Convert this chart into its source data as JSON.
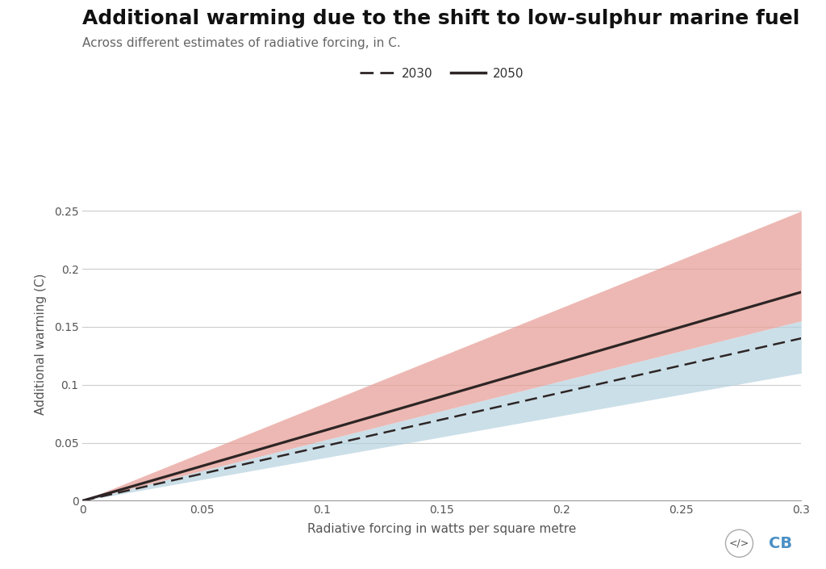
{
  "title": "Additional warming due to the shift to low-sulphur marine fuel",
  "subtitle": "Across different estimates of radiative forcing, in C.",
  "xlabel": "Radiative forcing in watts per square metre",
  "ylabel": "Additional warming (C)",
  "x_max": 0.3,
  "y_max": 0.27,
  "y_ticks": [
    0,
    0.05,
    0.1,
    0.15,
    0.2,
    0.25
  ],
  "x_ticks": [
    0,
    0.05,
    0.1,
    0.15,
    0.2,
    0.25,
    0.3
  ],
  "line_2050_slope": 0.6,
  "line_2050_upper_slope": 0.833,
  "line_2050_lower_slope": 0.517,
  "line_2030_slope": 0.467,
  "line_2030_upper_slope": 0.517,
  "line_2030_lower_slope": 0.367,
  "color_2050_line": "#2d2525",
  "color_2030_line": "#2d2525",
  "color_2050_fill": "#e8a09a",
  "color_2030_fill": "#b0cedd",
  "fill_alpha_2050": 0.75,
  "fill_alpha_2030": 0.65,
  "background_color": "#ffffff",
  "title_fontsize": 18,
  "subtitle_fontsize": 11,
  "axis_label_fontsize": 11,
  "tick_fontsize": 10,
  "legend_fontsize": 11,
  "grid_color": "#cccccc",
  "tick_color": "#555555",
  "label_color": "#555555"
}
